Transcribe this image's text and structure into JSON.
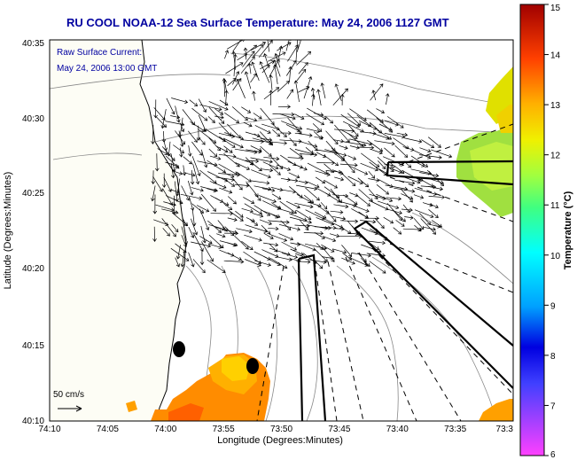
{
  "title": "RU COOL  NOAA-12  Sea Surface Temperature:  May 24, 2006 1127 GMT",
  "map": {
    "legend_label": "Raw Surface Current:",
    "legend_time": "May 24, 2006 13:00 GMT",
    "scale_label": "50 cm/s",
    "xlabel": "Longitude (Degrees:Minutes)",
    "ylabel": "Latitude (Degrees:Minutes)",
    "x_ticks": [
      "74:10",
      "74:05",
      "74:00",
      "73:55",
      "73:50",
      "73:45",
      "73:40",
      "73:35",
      "73:3"
    ],
    "y_ticks": [
      "40:35",
      "40:30",
      "40:25",
      "40:20",
      "40:15",
      "40:10"
    ]
  },
  "colorbar": {
    "label": "Temperature (°C)",
    "ticks": [
      "15",
      "14",
      "13",
      "12",
      "11",
      "10",
      "9",
      "8",
      "7",
      "6"
    ],
    "min": 6,
    "max": 15
  },
  "colors": {
    "title": "#0000a0",
    "land": "#fdfdf5",
    "arrows": "#000000"
  }
}
